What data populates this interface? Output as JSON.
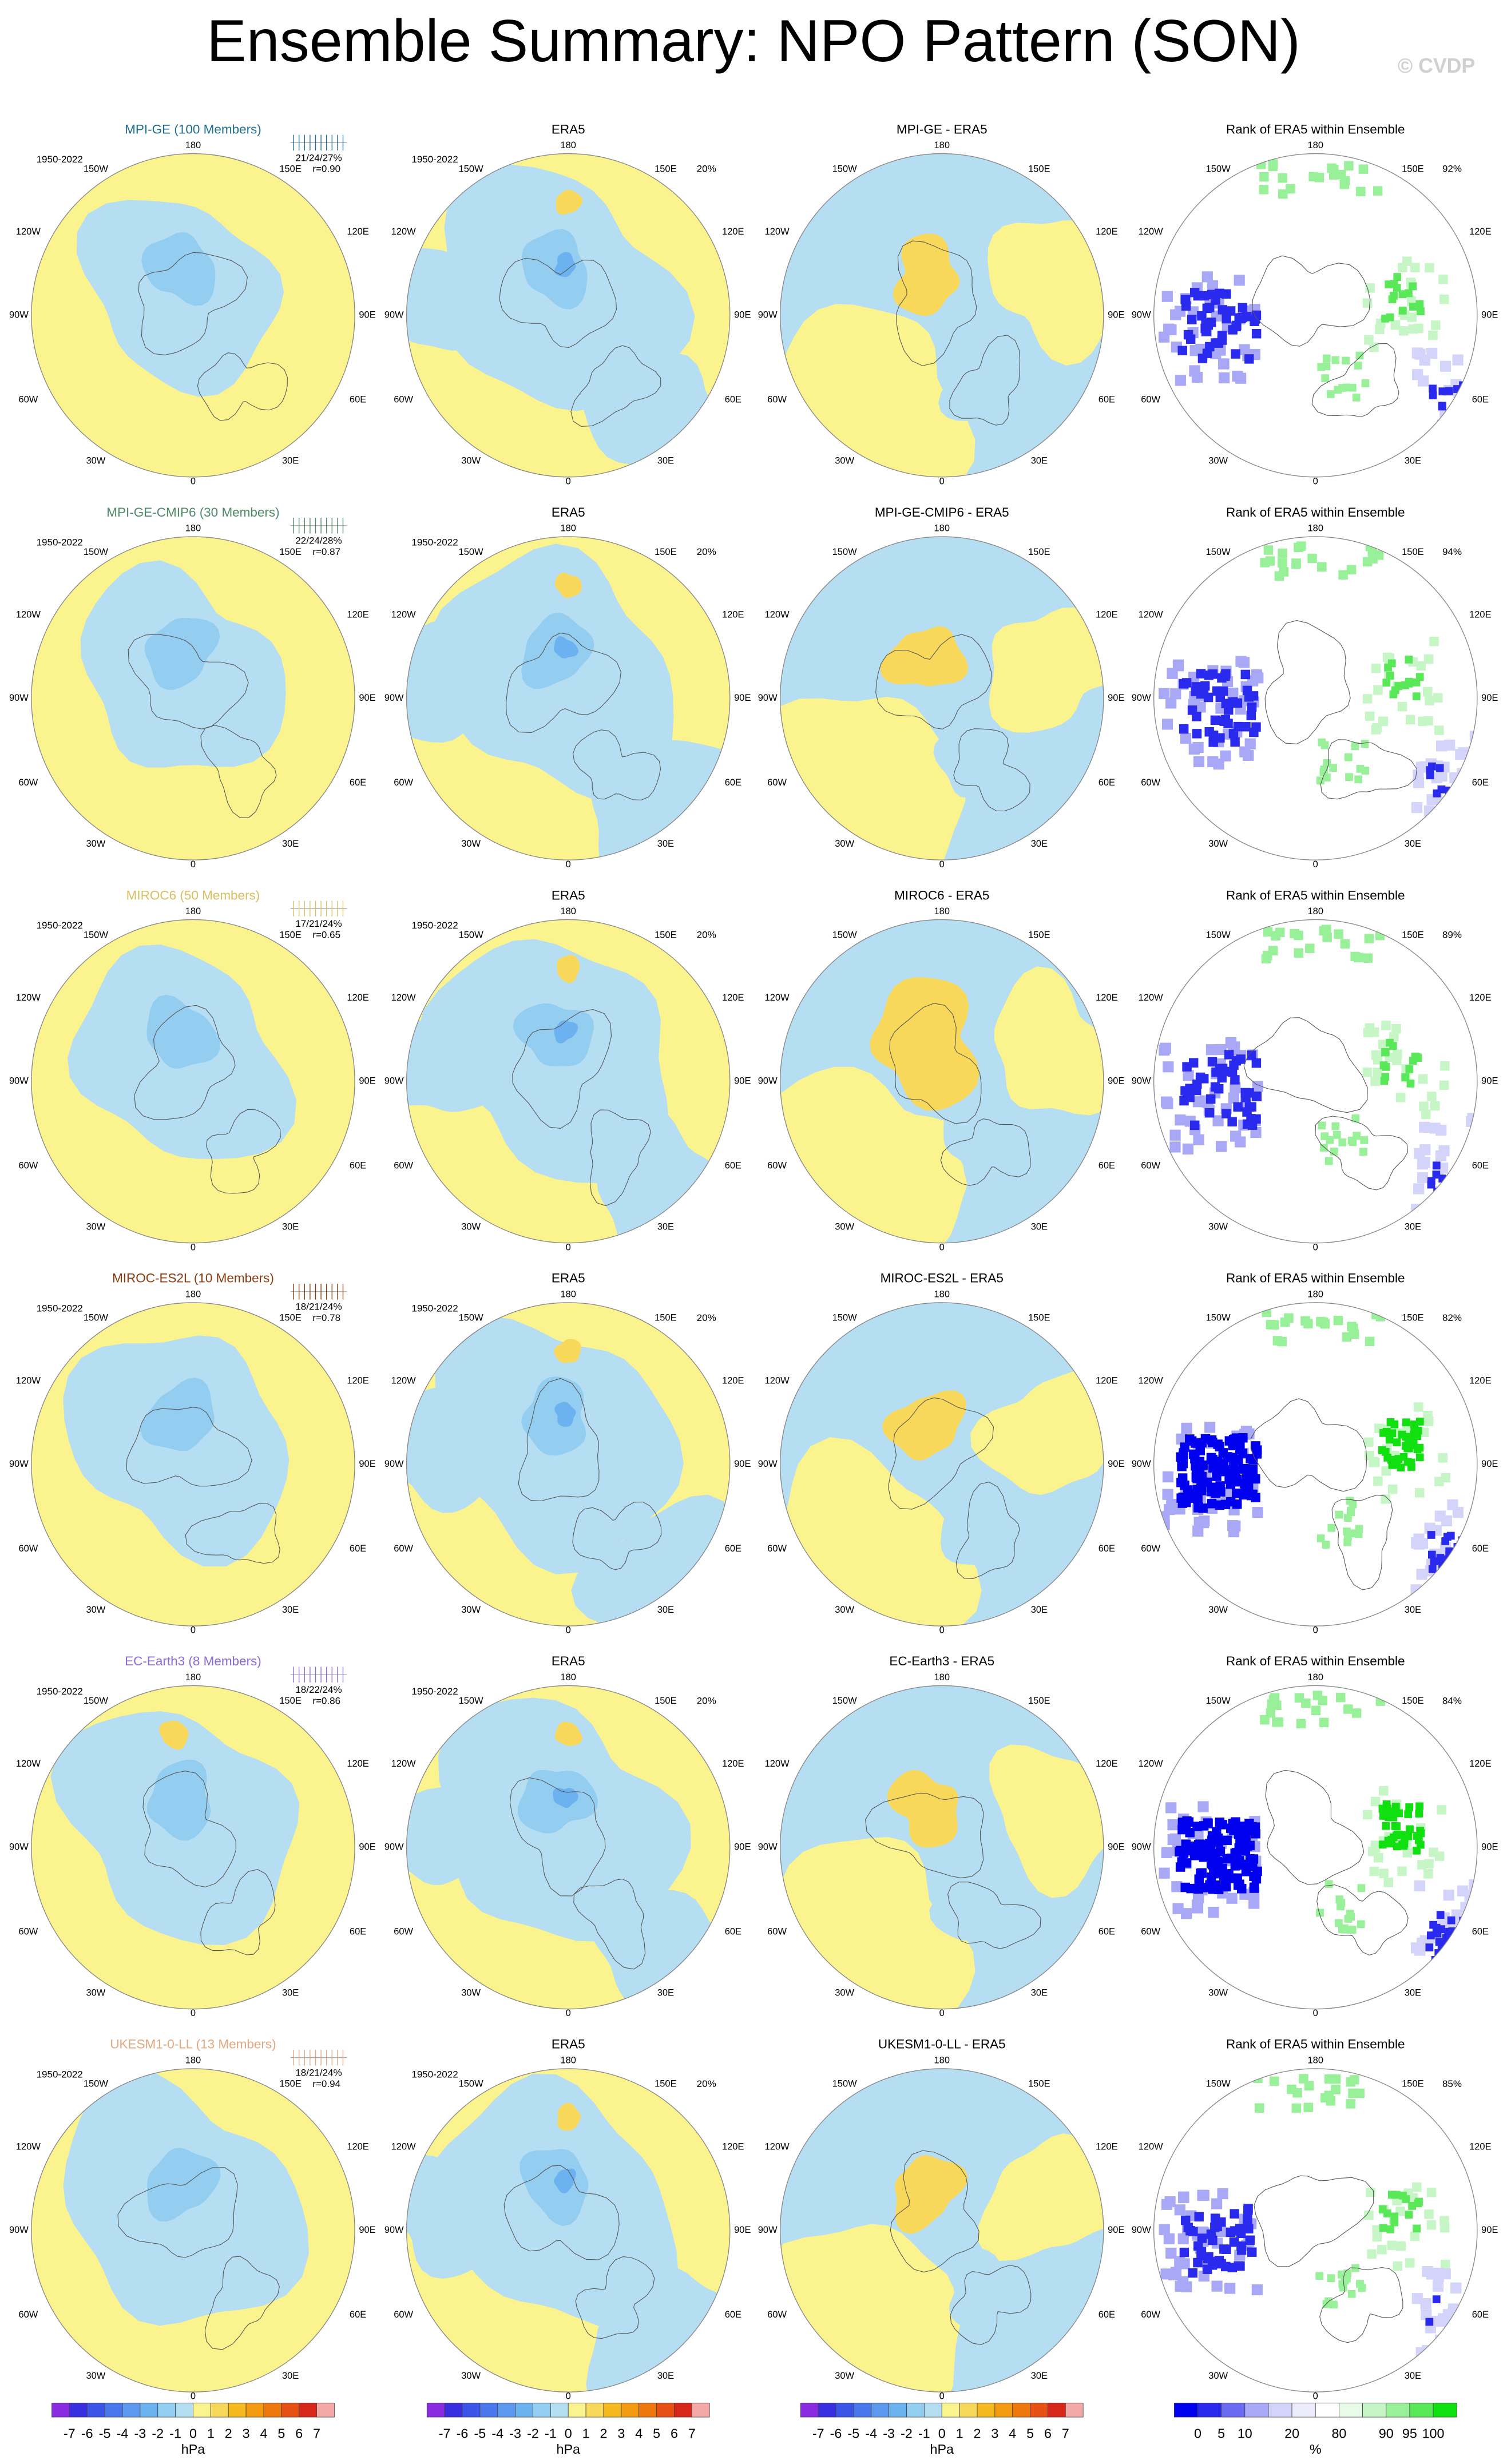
{
  "header": {
    "title": "Ensemble Summary: NPO Pattern (SON)",
    "watermark": "© CVDP"
  },
  "lon_labels": [
    "180",
    "150W",
    "150E",
    "120W",
    "120E",
    "90W",
    "90E",
    "60W",
    "60E",
    "30W",
    "30E",
    "0"
  ],
  "rows": [
    {
      "model": "MPI-GE (100 Members)",
      "model_color": "#1f6f92",
      "period": "1950-2022",
      "stats": "21/24/27%",
      "r": "r=0.90",
      "era5_title": "ERA5",
      "era5_period": "1950-2022",
      "era5_pct": "20%",
      "diff_title": "MPI-GE - ERA5",
      "rank_title": "Rank of ERA5 within Ensemble",
      "rank_pct": "92%"
    },
    {
      "model": "MPI-GE-CMIP6 (30 Members)",
      "model_color": "#4f8a6a",
      "period": "1950-2022",
      "stats": "22/24/28%",
      "r": "r=0.87",
      "era5_title": "ERA5",
      "era5_period": "1950-2022",
      "era5_pct": "20%",
      "diff_title": "MPI-GE-CMIP6 - ERA5",
      "rank_title": "Rank of ERA5 within Ensemble",
      "rank_pct": "94%"
    },
    {
      "model": "MIROC6 (50 Members)",
      "model_color": "#d8c060",
      "period": "1950-2022",
      "stats": "17/21/24%",
      "r": "r=0.65",
      "era5_title": "ERA5",
      "era5_period": "1950-2022",
      "era5_pct": "20%",
      "diff_title": "MIROC6 - ERA5",
      "rank_title": "Rank of ERA5 within Ensemble",
      "rank_pct": "89%"
    },
    {
      "model": "MIROC-ES2L (10 Members)",
      "model_color": "#8a3a10",
      "period": "1950-2022",
      "stats": "18/21/24%",
      "r": "r=0.78",
      "era5_title": "ERA5",
      "era5_period": "1950-2022",
      "era5_pct": "20%",
      "diff_title": "MIROC-ES2L - ERA5",
      "rank_title": "Rank of ERA5 within Ensemble",
      "rank_pct": "82%"
    },
    {
      "model": "EC-Earth3 (8 Members)",
      "model_color": "#8a6ad8",
      "period": "1950-2022",
      "stats": "18/22/24%",
      "r": "r=0.86",
      "era5_title": "ERA5",
      "era5_period": "1950-2022",
      "era5_pct": "20%",
      "diff_title": "EC-Earth3 - ERA5",
      "rank_title": "Rank of ERA5 within Ensemble",
      "rank_pct": "84%"
    },
    {
      "model": "UKESM1-0-LL (13 Members)",
      "model_color": "#e0a880",
      "period": "1950-2022",
      "stats": "18/21/24%",
      "r": "r=0.94",
      "era5_title": "ERA5",
      "era5_period": "1950-2022",
      "era5_pct": "20%",
      "diff_title": "UKESM1-0-LL - ERA5",
      "rank_title": "Rank of ERA5 within Ensemble",
      "rank_pct": "85%"
    }
  ],
  "hpa_colorbar": {
    "unit": "hPa",
    "levels": [
      -7,
      -6,
      -5,
      -4,
      -3,
      -2,
      -1,
      0,
      1,
      2,
      3,
      4,
      5,
      6,
      7
    ],
    "colors": [
      "#8a2be2",
      "#3a2fe0",
      "#3b55e8",
      "#4a78ec",
      "#5c98ee",
      "#6cb2f0",
      "#93cdf0",
      "#b6def2",
      "#faf38e",
      "#f8d85a",
      "#f5b81e",
      "#f39a10",
      "#ee780e",
      "#e65012",
      "#d8261a",
      "#f4a8a8"
    ]
  },
  "rank_colorbar": {
    "unit": "%",
    "levels": [
      0,
      5,
      10,
      20,
      80,
      90,
      95,
      100
    ],
    "colors": [
      "#0000ee",
      "#2a2aee",
      "#6a6af2",
      "#a8a8f6",
      "#d4d4fa",
      "#ececfc",
      "#ffffff",
      "#e8fae8",
      "#c6f5c6",
      "#98f098",
      "#58e858",
      "#10e010"
    ]
  }
}
